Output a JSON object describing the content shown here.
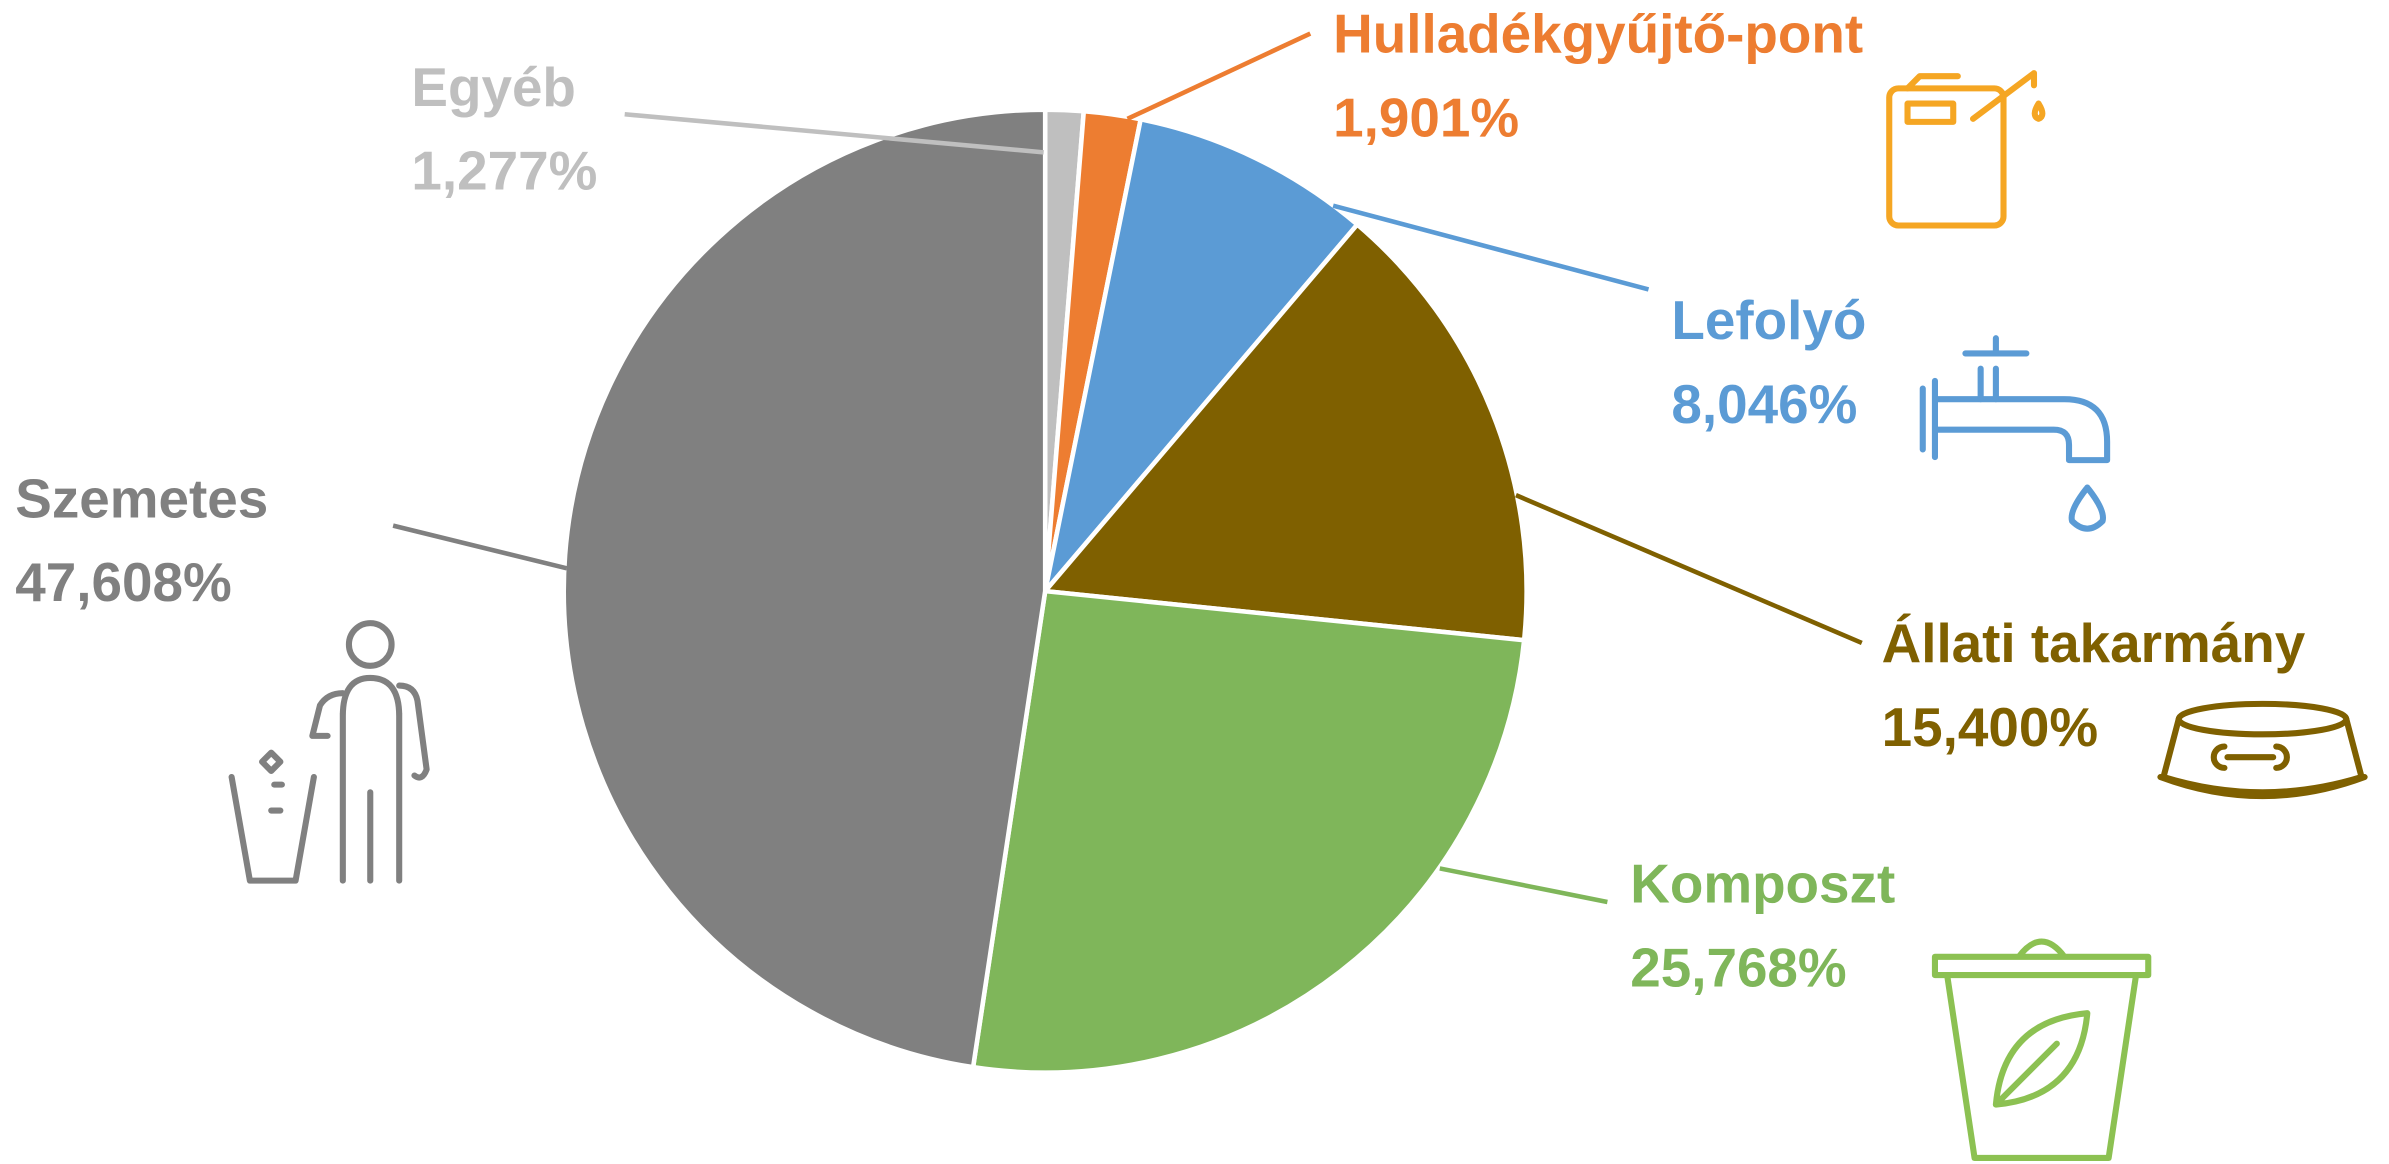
{
  "chart_data": {
    "type": "pie",
    "categories": [
      "Egyéb",
      "Hulladékgyűjtő-pont",
      "Lefolyó",
      "Állati takarmány",
      "Komposzt",
      "Szemetes"
    ],
    "values": [
      1.277,
      1.901,
      8.046,
      15.4,
      25.768,
      47.608
    ],
    "value_labels": [
      "1,277%",
      "1,901%",
      "8,046%",
      "15,400%",
      "25,768%",
      "47,608%"
    ],
    "colors": [
      "#bfbfbf",
      "#ed7d31",
      "#5b9bd5",
      "#7f6000",
      "#7fb65a",
      "#808080"
    ]
  }
}
